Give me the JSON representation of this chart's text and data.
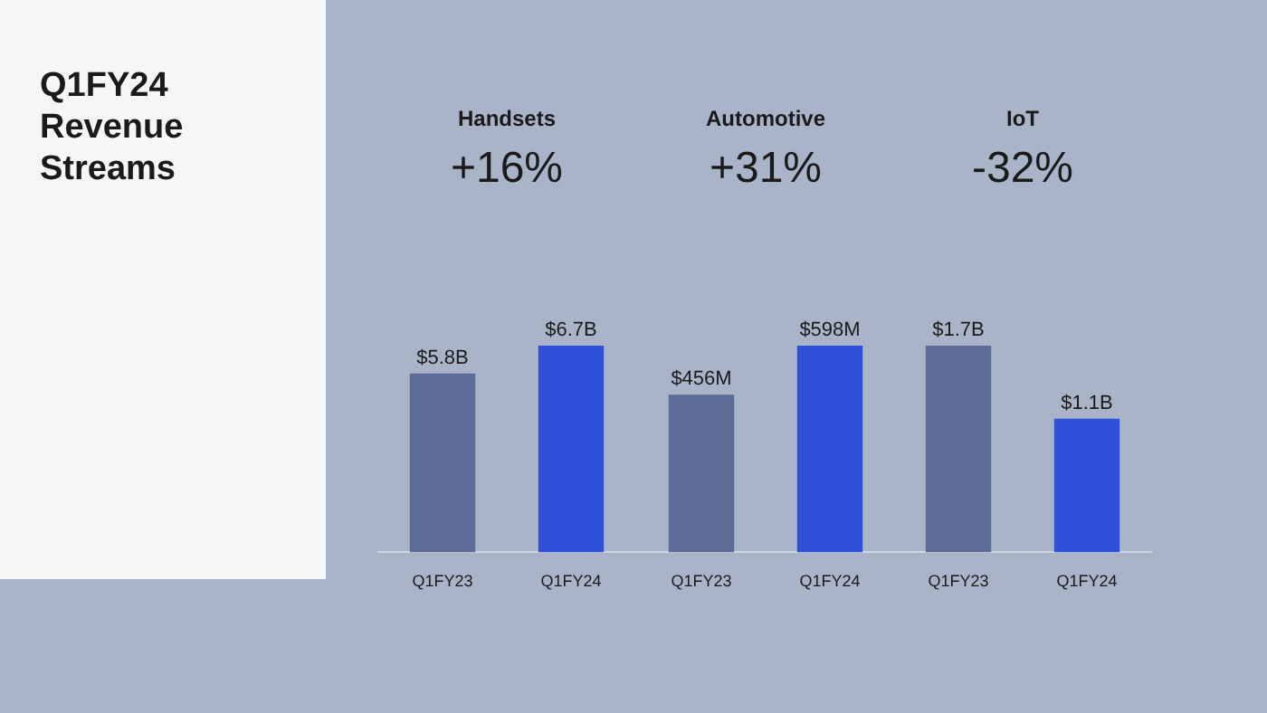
{
  "chart_data": [
    {
      "type": "other",
      "title": "Q1FY24 Revenue Streams"
    },
    {
      "type": "bar",
      "title": "Handsets",
      "subtitle": "+16%",
      "categories": [
        "Q1FY23",
        "Q1FY24"
      ],
      "values": [
        5.8,
        6.7
      ],
      "value_labels": [
        "$5.8B",
        "$6.7B"
      ],
      "colors": [
        "#5d6c96",
        "#2f50d8"
      ]
    },
    {
      "type": "bar",
      "title": "Automotive",
      "subtitle": "+31%",
      "categories": [
        "Q1FY23",
        "Q1FY24"
      ],
      "values": [
        456,
        598
      ],
      "value_labels": [
        "$456M",
        "$598M"
      ],
      "colors": [
        "#5d6c96",
        "#2f50d8"
      ]
    },
    {
      "type": "bar",
      "title": "IoT",
      "subtitle": "-32%",
      "categories": [
        "Q1FY23",
        "Q1FY24"
      ],
      "values": [
        1.7,
        1.1
      ],
      "value_labels": [
        "$1.7B",
        "$1.1B"
      ],
      "colors": [
        "#5d6c96",
        "#2f50d8"
      ]
    }
  ]
}
